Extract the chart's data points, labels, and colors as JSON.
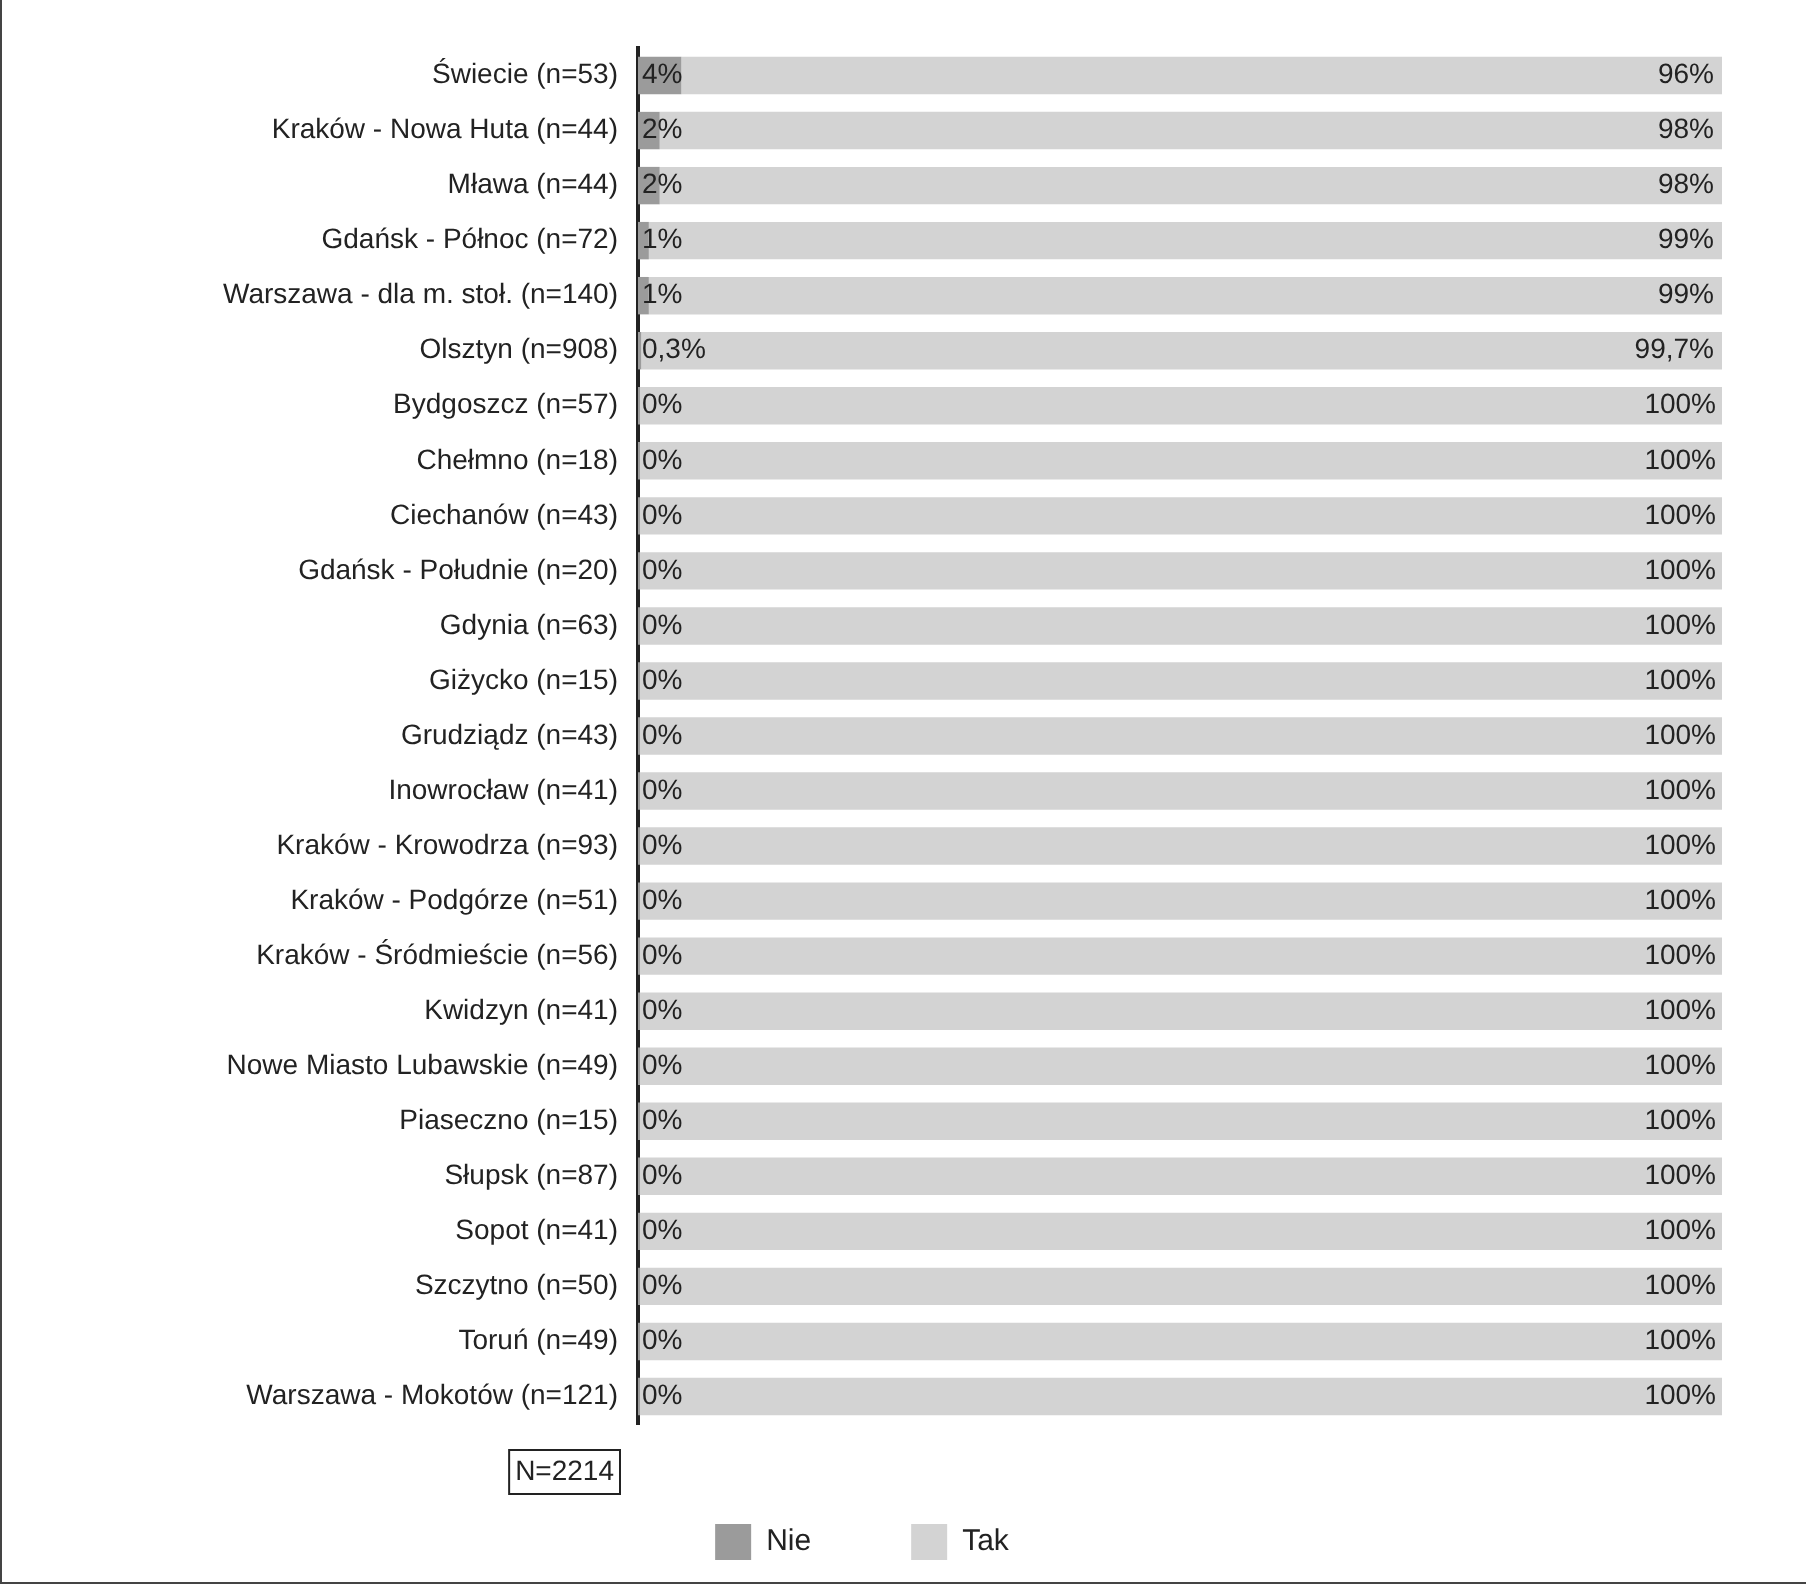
{
  "chart_data": {
    "type": "bar",
    "orientation": "horizontal",
    "stacked": true,
    "categories": [
      "Świecie (n=53)",
      "Kraków - Nowa Huta (n=44)",
      "Mława (n=44)",
      "Gdańsk - Północ (n=72)",
      "Warszawa - dla m. stoł. (n=140)",
      "Olsztyn (n=908)",
      "Bydgoszcz (n=57)",
      "Chełmno (n=18)",
      "Ciechanów (n=43)",
      "Gdańsk - Południe (n=20)",
      "Gdynia (n=63)",
      "Giżycko (n=15)",
      "Grudziądz (n=43)",
      "Inowrocław (n=41)",
      "Kraków - Krowodrza (n=93)",
      "Kraków - Podgórze (n=51)",
      "Kraków - Śródmieście (n=56)",
      "Kwidzyn (n=41)",
      "Nowe Miasto Lubawskie (n=49)",
      "Piaseczno (n=15)",
      "Słupsk (n=87)",
      "Sopot (n=41)",
      "Szczytno (n=50)",
      "Toruń (n=49)",
      "Warszawa - Mokotów (n=121)"
    ],
    "series": [
      {
        "name": "Nie",
        "color": "#9b9b9b",
        "values": [
          4,
          2,
          2,
          1,
          1,
          0.3,
          0,
          0,
          0,
          0,
          0,
          0,
          0,
          0,
          0,
          0,
          0,
          0,
          0,
          0,
          0,
          0,
          0,
          0,
          0
        ],
        "value_labels": [
          "4%",
          "2%",
          "2%",
          "1%",
          "1%",
          "0,3%",
          "0%",
          "0%",
          "0%",
          "0%",
          "0%",
          "0%",
          "0%",
          "0%",
          "0%",
          "0%",
          "0%",
          "0%",
          "0%",
          "0%",
          "0%",
          "0%",
          "0%",
          "0%",
          "0%"
        ]
      },
      {
        "name": "Tak",
        "color": "#d3d3d3",
        "values": [
          96,
          98,
          98,
          99,
          99,
          99.7,
          100,
          100,
          100,
          100,
          100,
          100,
          100,
          100,
          100,
          100,
          100,
          100,
          100,
          100,
          100,
          100,
          100,
          100,
          100
        ],
        "value_labels": [
          "96%",
          "98%",
          "98%",
          "99%",
          "99%",
          "99,7%",
          "100%",
          "100%",
          "100%",
          "100%",
          "100%",
          "100%",
          "100%",
          "100%",
          "100%",
          "100%",
          "100%",
          "100%",
          "100%",
          "100%",
          "100%",
          "100%",
          "100%",
          "100%",
          "100%"
        ]
      }
    ],
    "xlim": [
      0,
      100
    ],
    "tick_labels": "y",
    "legend": "bottom",
    "annotations": [
      "N=2214"
    ]
  }
}
